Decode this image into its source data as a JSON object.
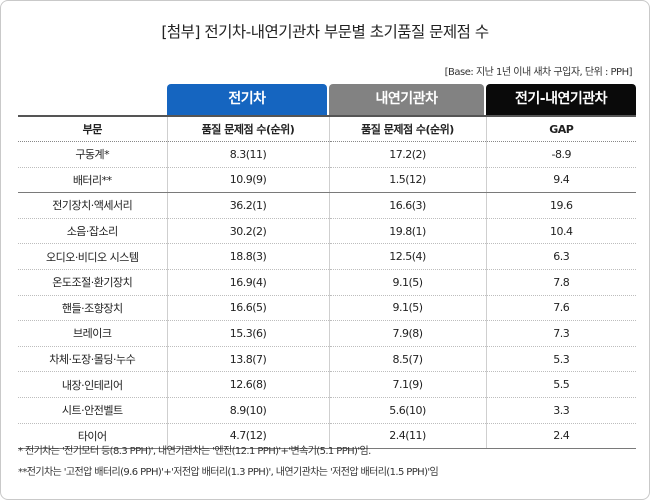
{
  "title": "[첨부] 전기차-내연기관차 부문별 초기품질 문제점 수",
  "base_note": "[Base: 지난 1년 이내 새차 구입자, 단위 : PPH]",
  "group_headers": {
    "ev": "전기차",
    "ice": "내연기관차",
    "gap": "전기-내연기관차"
  },
  "column_headers": [
    "부문",
    "품질 문제점 수(순위)",
    "품질 문제점 수(순위)",
    "GAP"
  ],
  "rows": [
    {
      "category": "구동계*",
      "ev": "8.3(11)",
      "ice": "17.2(2)",
      "gap": "-8.9"
    },
    {
      "category": "배터리**",
      "ev": "10.9(9)",
      "ice": "1.5(12)",
      "gap": "9.4"
    },
    {
      "category": "전기장치·액세서리",
      "ev": "36.2(1)",
      "ice": "16.6(3)",
      "gap": "19.6"
    },
    {
      "category": "소음·잡소리",
      "ev": "30.2(2)",
      "ice": "19.8(1)",
      "gap": "10.4"
    },
    {
      "category": "오디오·비디오 시스템",
      "ev": "18.8(3)",
      "ice": "12.5(4)",
      "gap": "6.3"
    },
    {
      "category": "온도조절·환기장치",
      "ev": "16.9(4)",
      "ice": "9.1(5)",
      "gap": "7.8"
    },
    {
      "category": "핸들·조향장치",
      "ev": "16.6(5)",
      "ice": "9.1(5)",
      "gap": "7.6"
    },
    {
      "category": "브레이크",
      "ev": "15.3(6)",
      "ice": "7.9(8)",
      "gap": "7.3"
    },
    {
      "category": "차체·도장·몰딩·누수",
      "ev": "13.8(7)",
      "ice": "8.5(7)",
      "gap": "5.3"
    },
    {
      "category": "내장·인테리어",
      "ev": "12.6(8)",
      "ice": "7.1(9)",
      "gap": "5.5"
    },
    {
      "category": "시트·안전벨트",
      "ev": "8.9(10)",
      "ice": "5.6(10)",
      "gap": "3.3"
    },
    {
      "category": "타이어",
      "ev": "4.7(12)",
      "ice": "2.4(11)",
      "gap": "2.4"
    }
  ],
  "footnotes": [
    "* 전기차는 '전기모터 등(8.3 PPH)', 내연기관차는 '엔진(12.1 PPH)'+'변속기(5.1 PPH)'임.",
    "**전기차는 '고전압 배터리(9.6 PPH)'+'저전압 배터리(1.3 PPH)', 내연기관차는 '저전압 배터리(1.5 PPH)'임"
  ]
}
